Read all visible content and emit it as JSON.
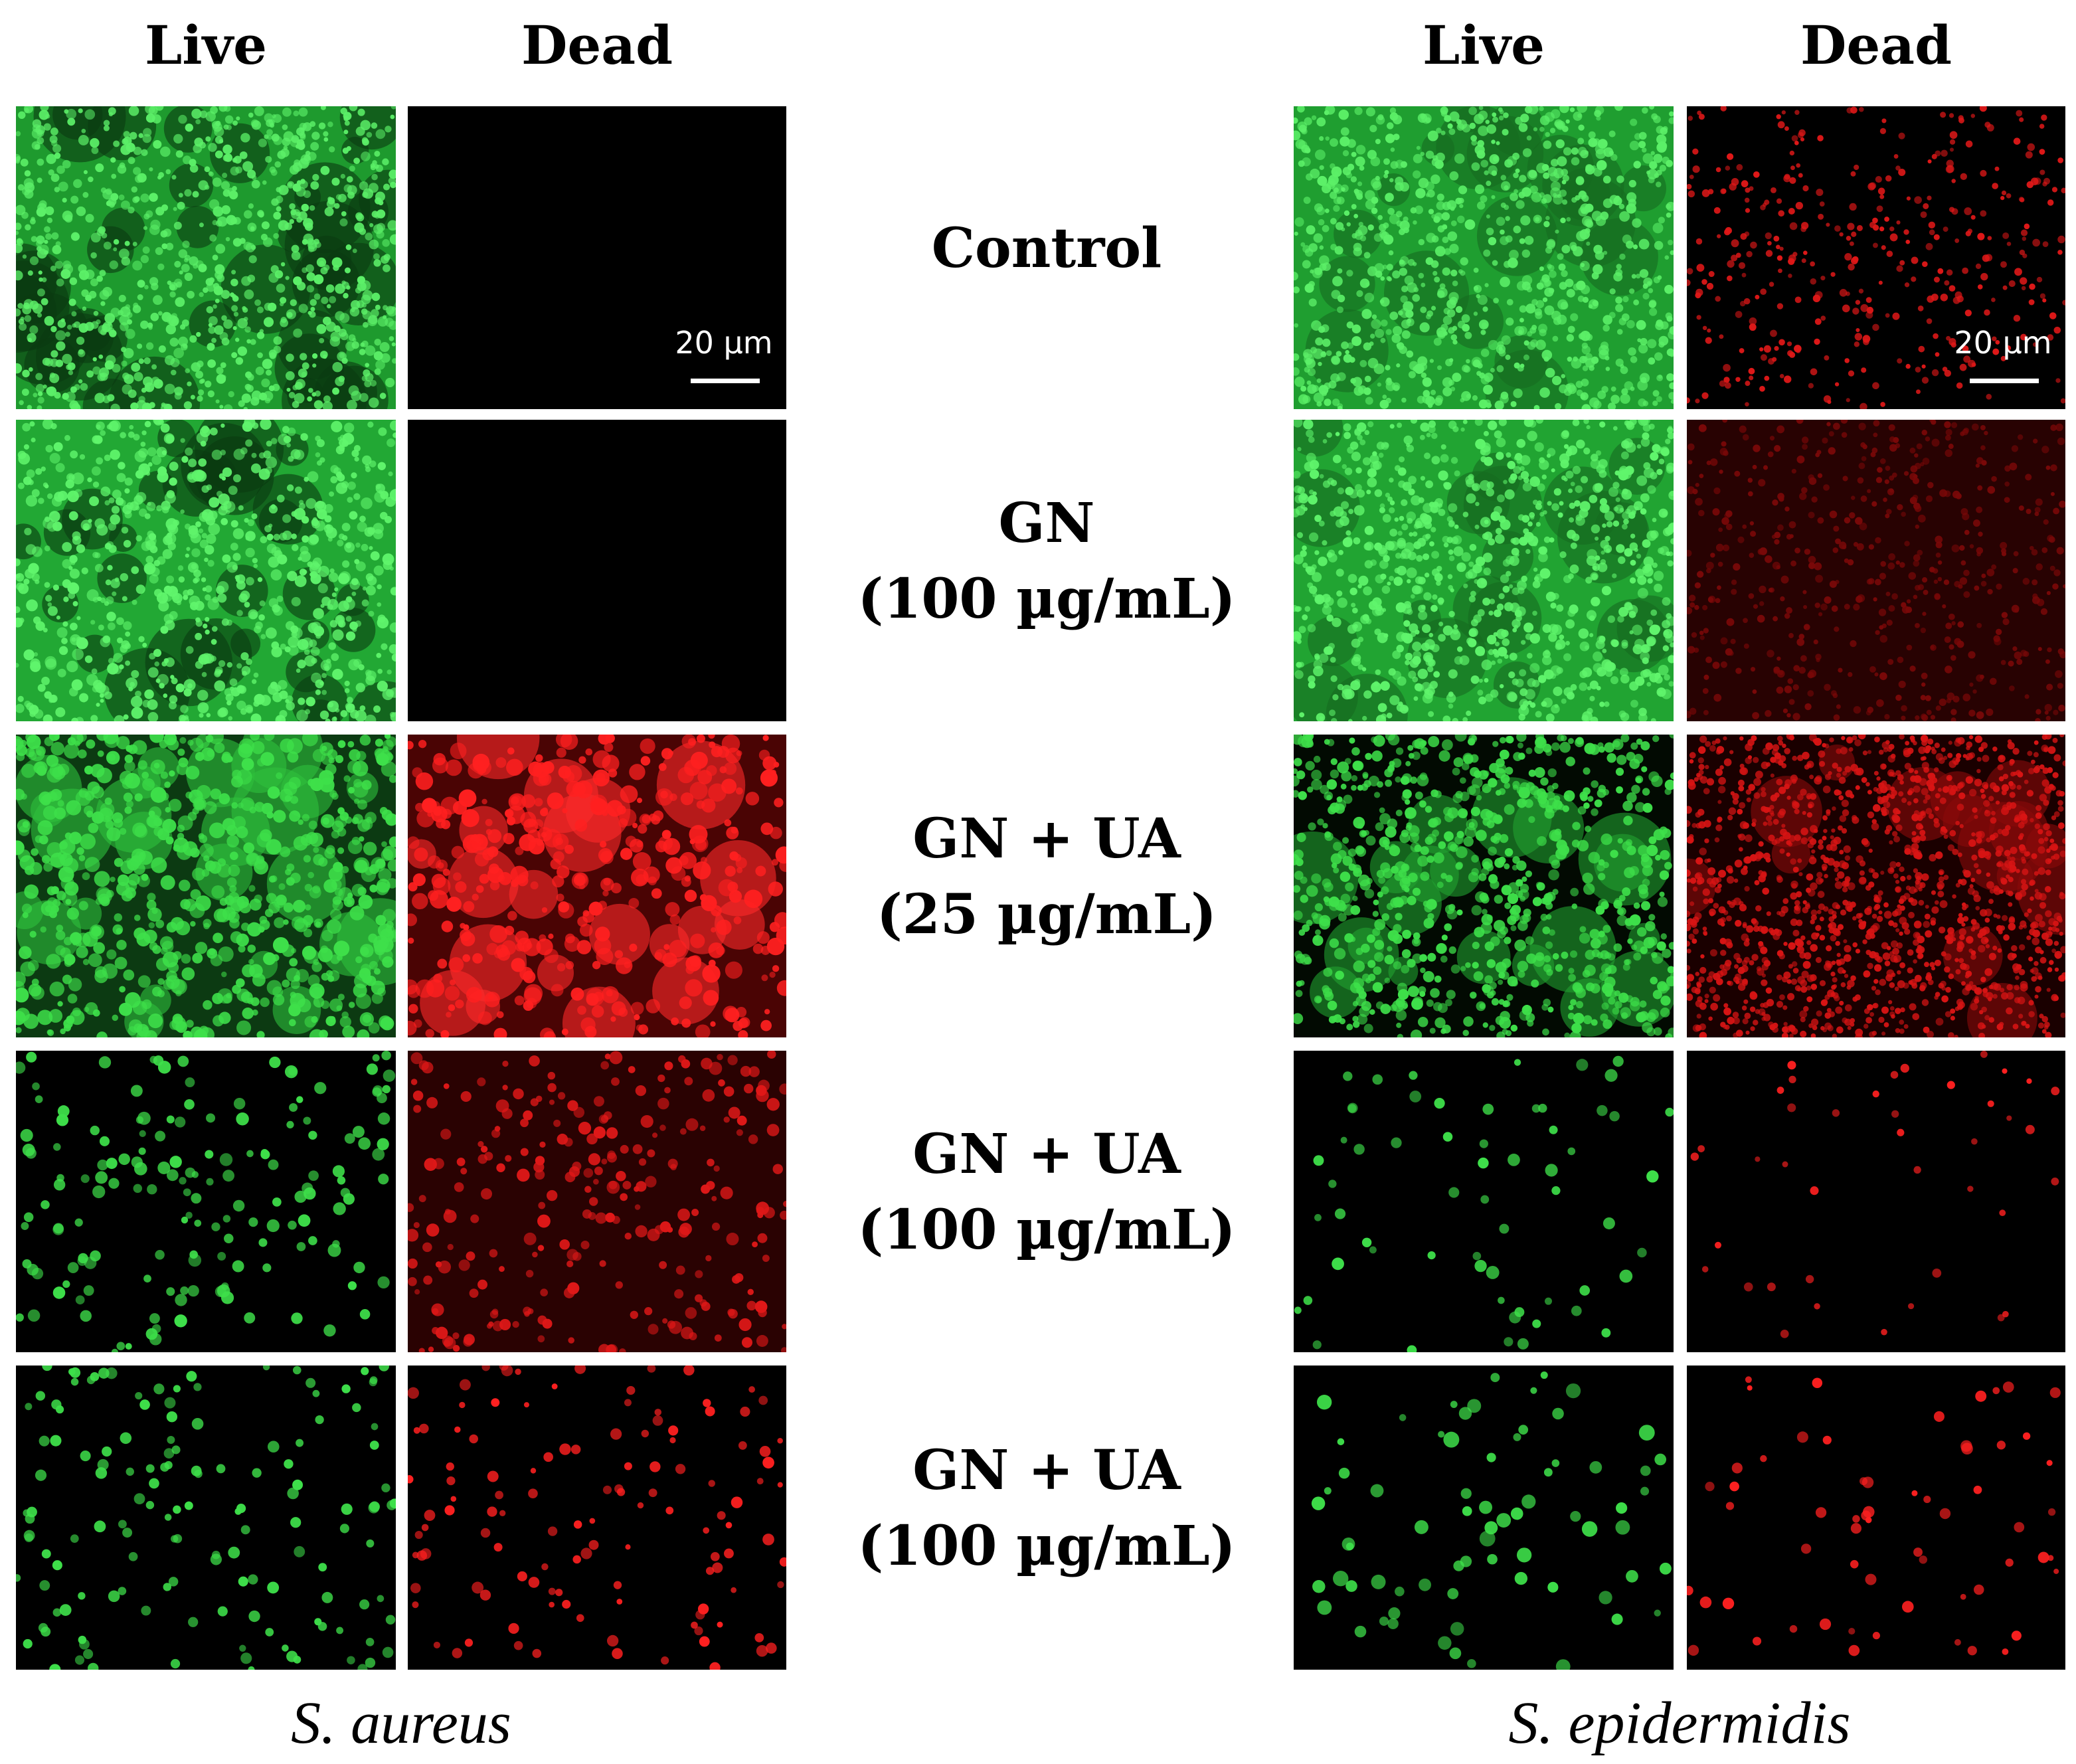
{
  "left": {
    "headers": [
      "Live",
      "Dead"
    ],
    "organism": "S. aureus",
    "scale_bar": "20 µm"
  },
  "right": {
    "headers": [
      "Live",
      "Dead"
    ],
    "organism": "S. epidermidis",
    "scale_bar": "20 µm"
  },
  "rows": [
    {
      "lines": [
        "Control"
      ]
    },
    {
      "lines": [
        "GN",
        "(100 µg/mL)"
      ]
    },
    {
      "lines": [
        "GN + UA",
        "(25 µg/mL)"
      ]
    },
    {
      "lines": [
        "GN + UA",
        "(100 µg/mL)"
      ]
    },
    {
      "lines": [
        "GN + UA",
        "(100 µg/mL)"
      ]
    }
  ]
}
